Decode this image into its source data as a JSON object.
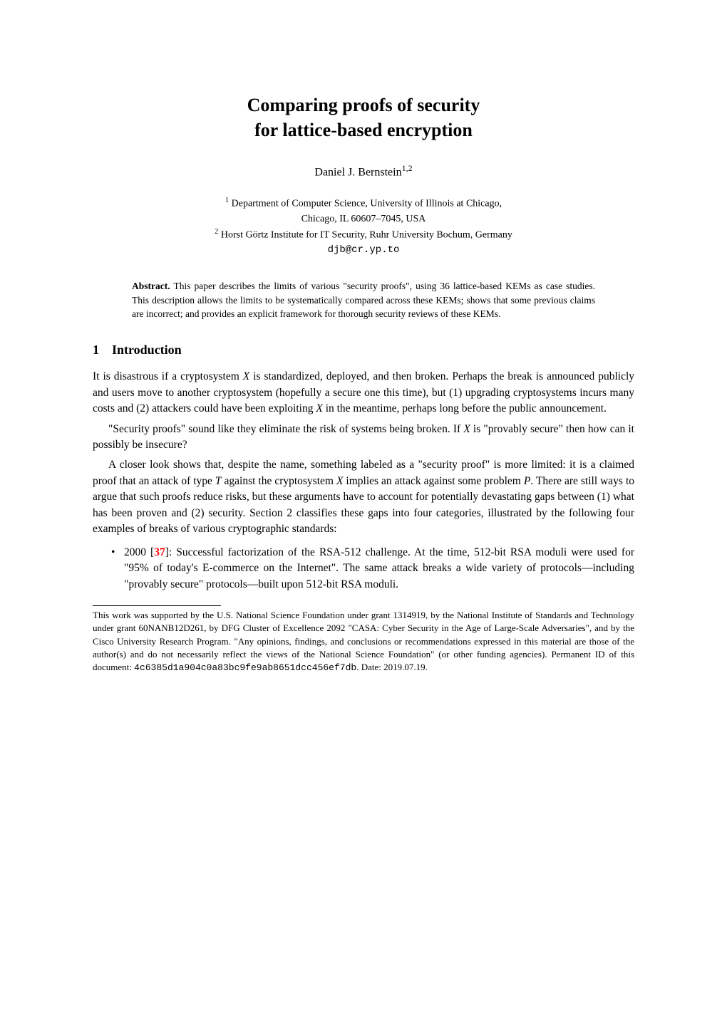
{
  "title": {
    "line1": "Comparing proofs of security",
    "line2": "for lattice-based encryption"
  },
  "author": {
    "name": "Daniel J. Bernstein",
    "ref": "1,2"
  },
  "affiliations": {
    "a1_ref": "1",
    "a1_line1": "Department of Computer Science, University of Illinois at Chicago,",
    "a1_line2": "Chicago, IL 60607–7045, USA",
    "a2_ref": "2",
    "a2_text": "Horst Görtz Institute for IT Security, Ruhr University Bochum, Germany",
    "email": "djb@cr.yp.to"
  },
  "abstract": {
    "label": "Abstract.",
    "text": "This paper describes the limits of various \"security proofs\", using 36 lattice-based KEMs as case studies. This description allows the limits to be systematically compared across these KEMs; shows that some previous claims are incorrect; and provides an explicit framework for thorough security reviews of these KEMs."
  },
  "section1": {
    "number": "1",
    "title": "Introduction"
  },
  "para1": "It is disastrous if a cryptosystem X is standardized, deployed, and then broken. Perhaps the break is announced publicly and users move to another cryptosystem (hopefully a secure one this time), but (1) upgrading cryptosystems incurs many costs and (2) attackers could have been exploiting X in the meantime, perhaps long before the public announcement.",
  "para2": "\"Security proofs\" sound like they eliminate the risk of systems being broken. If X is \"provably secure\" then how can it possibly be insecure?",
  "para3": "A closer look shows that, despite the name, something labeled as a \"security proof\" is more limited: it is a claimed proof that an attack of type T against the cryptosystem X implies an attack against some problem P. There are still ways to argue that such proofs reduce risks, but these arguments have to account for potentially devastating gaps between (1) what has been proven and (2) security. Section 2 classifies these gaps into four categories, illustrated by the following four examples of breaks of various cryptographic standards:",
  "bullet1": {
    "year": "2000",
    "ref": "37",
    "text_after_ref": ": Successful factorization of the RSA-512 challenge. At the time, 512-bit RSA moduli were used for \"95% of today's E-commerce on the Internet\". The same attack breaks a wide variety of protocols—including \"provably secure\" protocols—built upon 512-bit RSA moduli."
  },
  "footnote": {
    "text_before_id": "This work was supported by the U.S. National Science Foundation under grant 1314919, by the National Institute of Standards and Technology under grant 60NANB12D261, by DFG Cluster of Excellence 2092 \"CASA: Cyber Security in the Age of Large-Scale Adversaries\", and by the Cisco University Research Program. \"Any opinions, findings, and conclusions or recommendations expressed in this material are those of the author(s) and do not necessarily reflect the views of the National Science Foundation\" (or other funding agencies). Permanent ID of this document: ",
    "doc_id": "4c6385d1a904c0a83bc9fe9ab8651dcc456ef7db",
    "text_after_id": ". Date: 2019.07.19."
  }
}
